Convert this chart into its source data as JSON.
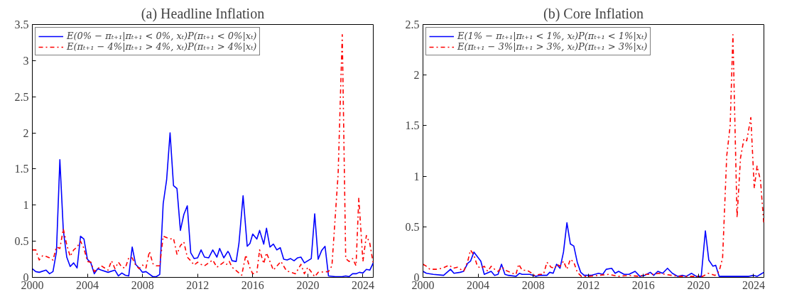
{
  "chart_data": [
    {
      "type": "line",
      "title": "(a) Headline Inflation",
      "xlim": [
        2000,
        2024.75
      ],
      "xticks": [
        2000,
        2004,
        2008,
        2012,
        2016,
        2020,
        2024
      ],
      "ylim": [
        0,
        3.5
      ],
      "yticks": [
        0,
        0.5,
        1,
        1.5,
        2,
        2.5,
        3,
        3.5
      ],
      "grid": false,
      "legend": "top left",
      "series": [
        {
          "name": "E(0% − πₜ₊₁|πₜ₊₁ < 0%, xₜ)P(πₜ₊₁ < 0%|xₜ)",
          "color": "#0000ff",
          "line_style": "solid",
          "x": [
            2000,
            2000.25,
            2000.5,
            2001,
            2001.25,
            2001.5,
            2001.75,
            2002,
            2002.25,
            2002.5,
            2002.75,
            2003,
            2003.25,
            2003.5,
            2003.75,
            2004,
            2004.25,
            2004.5,
            2004.75,
            2005,
            2005.5,
            2006,
            2006.25,
            2006.5,
            2006.75,
            2007,
            2007.25,
            2007.5,
            2007.75,
            2008,
            2008.25,
            2008.75,
            2009,
            2009.25,
            2009.5,
            2009.75,
            2010,
            2010.25,
            2010.5,
            2010.75,
            2011,
            2011.25,
            2011.5,
            2011.75,
            2012,
            2012.25,
            2012.5,
            2012.8,
            2013.1,
            2013.4,
            2013.6,
            2013.9,
            2014.2,
            2014.3,
            2014.5,
            2014.8,
            2015.0,
            2015.3,
            2015.6,
            2015.8,
            2016.0,
            2016.3,
            2016.5,
            2016.8,
            2017.0,
            2017.25,
            2017.5,
            2017.75,
            2018,
            2018.25,
            2018.5,
            2018.75,
            2019,
            2019.25,
            2019.5,
            2019.75,
            2020,
            2020.25,
            2020.5,
            2020.75,
            2021,
            2021.25,
            2021.5,
            2022,
            2022.25,
            2022.5,
            2022.75,
            2023,
            2023.25,
            2023.5,
            2023.75,
            2024,
            2024.25,
            2024.5,
            2024.75
          ],
          "values": [
            0.12,
            0.08,
            0.07,
            0.1,
            0.05,
            0.08,
            0.35,
            1.63,
            0.65,
            0.28,
            0.15,
            0.2,
            0.13,
            0.57,
            0.53,
            0.25,
            0.2,
            0.05,
            0.12,
            0.1,
            0.07,
            0.1,
            0.02,
            0.06,
            0.03,
            0.02,
            0.42,
            0.18,
            0.13,
            0.07,
            0.08,
            0.01,
            0.01,
            0.04,
            1.02,
            1.35,
            2.0,
            1.27,
            1.23,
            0.65,
            0.87,
            0.99,
            0.34,
            0.26,
            0.27,
            0.38,
            0.28,
            0.27,
            0.38,
            0.28,
            0.4,
            0.27,
            0.36,
            0.33,
            0.23,
            0.22,
            0.47,
            1.13,
            0.43,
            0.47,
            0.6,
            0.53,
            0.65,
            0.46,
            0.68,
            0.42,
            0.46,
            0.38,
            0.41,
            0.25,
            0.24,
            0.26,
            0.23,
            0.27,
            0.28,
            0.2,
            0.23,
            0.26,
            0.88,
            0.25,
            0.37,
            0.43,
            0.02,
            0.01,
            0.01,
            0.01,
            0.02,
            0.01,
            0.05,
            0.05,
            0.07,
            0.06,
            0.11,
            0.1,
            0.2
          ]
        },
        {
          "name": "E(πₜ₊₁ − 4%|πₜ₊₁ > 4%, xₜ)P(πₜ₊₁ > 4%|xₜ)",
          "color": "#ff0000",
          "line_style": "dashdot",
          "x": [
            2000,
            2000.25,
            2000.5,
            2000.75,
            2001,
            2001.25,
            2001.5,
            2001.75,
            2002,
            2002.25,
            2002.5,
            2002.75,
            2003,
            2003.25,
            2003.5,
            2003.75,
            2004,
            2004.25,
            2004.5,
            2004.75,
            2005,
            2005.25,
            2005.5,
            2005.75,
            2006,
            2006.25,
            2006.5,
            2006.75,
            2007,
            2007.25,
            2007.5,
            2007.75,
            2008,
            2008.25,
            2008.5,
            2008.75,
            2009,
            2009.25,
            2009.5,
            2009.75,
            2010,
            2010.25,
            2010.5,
            2010.75,
            2011,
            2011.25,
            2011.5,
            2011.75,
            2012,
            2012.25,
            2012.5,
            2013.1,
            2013.4,
            2013.9,
            2014.1,
            2014.3,
            2014.5,
            2015.2,
            2015.5,
            2015.8,
            2016.0,
            2016.3,
            2016.5,
            2016.8,
            2017.0,
            2017.25,
            2017.5,
            2018.05,
            2018.45,
            2019.1,
            2019.5,
            2019.75,
            2020,
            2020.5,
            2020.75,
            2021.5,
            2021.75,
            2022.2,
            2022.5,
            2022.75,
            2023.0,
            2023.25,
            2023.5,
            2023.7,
            2024.0,
            2024.25,
            2024.5,
            2024.75
          ],
          "values": [
            0.38,
            0.38,
            0.24,
            0.3,
            0.29,
            0.27,
            0.24,
            0.42,
            0.4,
            0.67,
            0.45,
            0.29,
            0.38,
            0.42,
            0.5,
            0.4,
            0.22,
            0.21,
            0.08,
            0.12,
            0.16,
            0.13,
            0.1,
            0.23,
            0.12,
            0.21,
            0.14,
            0.13,
            0.27,
            0.27,
            0.17,
            0.12,
            0.17,
            0.13,
            0.36,
            0.19,
            0.16,
            0.16,
            0.57,
            0.55,
            0.53,
            0.54,
            0.32,
            0.44,
            0.49,
            0.28,
            0.23,
            0.17,
            0.21,
            0.18,
            0.16,
            0.24,
            0.14,
            0.21,
            0.18,
            0.22,
            0.14,
            0.03,
            0.31,
            0.13,
            0.05,
            0.07,
            0.38,
            0.19,
            0.34,
            0.22,
            0.1,
            0.22,
            0.09,
            0.05,
            0.18,
            0.05,
            0.14,
            0.01,
            0.07,
            0.08,
            0.16,
            1.43,
            3.36,
            0.26,
            0.22,
            0.26,
            0.16,
            1.1,
            0.22,
            0.58,
            0.47,
            0.19
          ]
        }
      ]
    },
    {
      "type": "line",
      "title": "(b) Core Inflation",
      "xlim": [
        2000,
        2024.75
      ],
      "xticks": [
        2000,
        2004,
        2008,
        2012,
        2016,
        2020,
        2024
      ],
      "ylim": [
        0,
        2.5
      ],
      "yticks": [
        0,
        0.5,
        1,
        1.5,
        2,
        2.5
      ],
      "grid": false,
      "legend": "top left",
      "series": [
        {
          "name": "E(1% − πₜ₊₁|πₜ₊₁ < 1%, xₜ)P(πₜ₊₁ < 1%|xₜ)",
          "color": "#0000ff",
          "line_style": "solid",
          "x": [
            2000,
            2000.25,
            2000.75,
            2001.5,
            2002.0,
            2002.25,
            2002.7,
            2002.95,
            2003.25,
            2003.45,
            2003.7,
            2004.2,
            2004.45,
            2004.95,
            2005.2,
            2005.45,
            2005.7,
            2005.95,
            2006.2,
            2006.75,
            2007.0,
            2007.2,
            2007.75,
            2008.2,
            2008.45,
            2009.0,
            2009.2,
            2009.45,
            2009.7,
            2009.95,
            2010.2,
            2010.45,
            2010.7,
            2010.95,
            2011.2,
            2011.45,
            2011.7,
            2012.2,
            2012.75,
            2013.05,
            2013.3,
            2013.7,
            2013.95,
            2014.2,
            2014.6,
            2014.95,
            2015.4,
            2015.75,
            2016.1,
            2016.5,
            2016.75,
            2017.05,
            2017.4,
            2017.75,
            2018.1,
            2018.5,
            2018.85,
            2019.1,
            2019.5,
            2019.85,
            2020.2,
            2020.5,
            2020.75,
            2021.05,
            2021.25,
            2021.5,
            2022.2,
            2023.1,
            2023.65,
            2024.0,
            2024.25,
            2024.5,
            2024.75
          ],
          "values": [
            0.06,
            0.04,
            0.03,
            0.02,
            0.08,
            0.04,
            0.05,
            0.06,
            0.14,
            0.16,
            0.25,
            0.16,
            0.03,
            0.06,
            0.02,
            0.03,
            0.13,
            0.03,
            0.02,
            0.01,
            0.04,
            0.03,
            0.03,
            0.01,
            0.02,
            0.02,
            0.05,
            0.04,
            0.13,
            0.09,
            0.25,
            0.54,
            0.33,
            0.31,
            0.15,
            0.05,
            0.02,
            0.02,
            0.04,
            0.03,
            0.08,
            0.09,
            0.04,
            0.06,
            0.03,
            0.03,
            0.06,
            0.01,
            0.02,
            0.05,
            0.02,
            0.06,
            0.04,
            0.09,
            0.04,
            0.01,
            0.02,
            0.01,
            0.04,
            0.01,
            0.01,
            0.46,
            0.17,
            0.11,
            0.12,
            0.01,
            0.01,
            0.01,
            0.01,
            0.02,
            0.01,
            0.03,
            0.05
          ]
        },
        {
          "name": "E(πₜ₊₁ − 3%|πₜ₊₁ > 3%, xₜ)P(πₜ₊₁ > 3%|xₜ)",
          "color": "#ff0000",
          "line_style": "dashdot",
          "x": [
            2000,
            2000.25,
            2000.5,
            2000.95,
            2001.4,
            2001.9,
            2002.2,
            2002.5,
            2002.95,
            2003.25,
            2003.45,
            2003.7,
            2003.95,
            2004.2,
            2004.45,
            2004.7,
            2004.95,
            2005.2,
            2005.45,
            2005.75,
            2006.0,
            2006.5,
            2006.75,
            2006.95,
            2007.2,
            2007.55,
            2007.8,
            2008.1,
            2008.5,
            2008.75,
            2009.0,
            2009.3,
            2009.55,
            2009.75,
            2009.95,
            2010.2,
            2010.45,
            2010.7,
            2010.95,
            2011.2,
            2011.5,
            2011.7,
            2012.05,
            2012.75,
            2013.5,
            2014.2,
            2014.95,
            2015.7,
            2016.2,
            2016.75,
            2017.1,
            2017.6,
            2018.05,
            2018.6,
            2019.3,
            2020.05,
            2020.3,
            2020.7,
            2021.2,
            2021.5,
            2021.75,
            2022.05,
            2022.3,
            2022.5,
            2022.8,
            2023.05,
            2023.3,
            2023.5,
            2023.8,
            2024.05,
            2024.25,
            2024.5,
            2024.75
          ],
          "values": [
            0.13,
            0.11,
            0.08,
            0.08,
            0.09,
            0.12,
            0.09,
            0.1,
            0.06,
            0.16,
            0.27,
            0.22,
            0.11,
            0.09,
            0.11,
            0.06,
            0.11,
            0.08,
            0.06,
            0.1,
            0.07,
            0.04,
            0.03,
            0.13,
            0.07,
            0.07,
            0.05,
            0.02,
            0.03,
            0.03,
            0.15,
            0.1,
            0.09,
            0.13,
            0.11,
            0.16,
            0.08,
            0.18,
            0.15,
            0.05,
            0.01,
            0.01,
            0.01,
            0.02,
            0.03,
            0.01,
            0.02,
            0.01,
            0.03,
            0.03,
            0.04,
            0.03,
            0.02,
            0.01,
            0.01,
            0.01,
            0.01,
            0.04,
            0.02,
            0.06,
            0.19,
            1.2,
            1.5,
            2.4,
            0.59,
            1.18,
            1.37,
            1.35,
            1.58,
            0.88,
            1.1,
            0.96,
            0.52
          ]
        }
      ]
    }
  ]
}
